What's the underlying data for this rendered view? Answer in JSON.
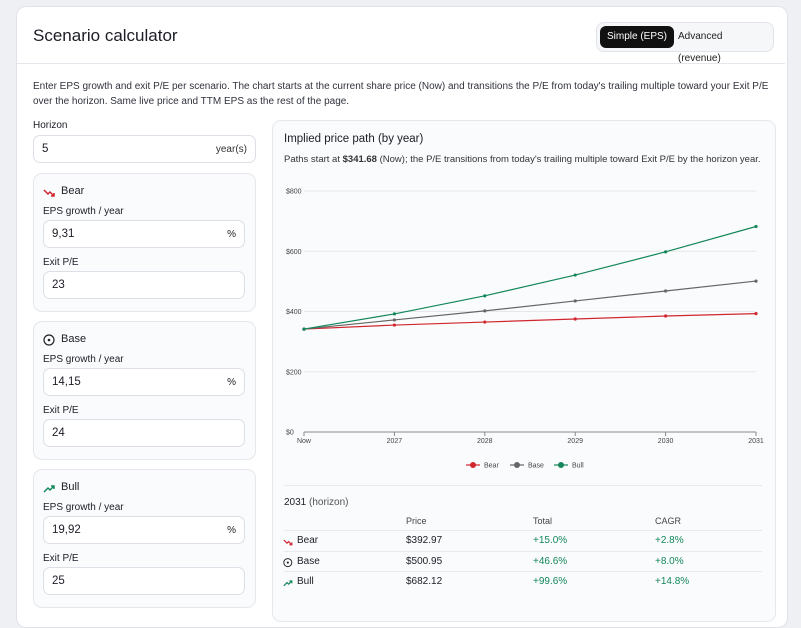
{
  "header": {
    "title": "Scenario calculator",
    "tabs": [
      "Simple (EPS)",
      "Advanced (revenue)"
    ]
  },
  "intro": "Enter EPS growth and exit P/E per scenario. The chart starts at the current share price (Now) and transitions the P/E from today's trailing multiple toward your Exit P/E over the horizon. Same live price and TTM EPS as the rest of the page.",
  "horizon": {
    "label": "Horizon",
    "value": "5",
    "unit": "year(s)"
  },
  "scenarios": [
    {
      "name": "Bear",
      "growth_label": "EPS growth / year",
      "growth": "9,31",
      "growth_unit": "%",
      "pe_label": "Exit P/E",
      "pe": "23"
    },
    {
      "name": "Base",
      "growth_label": "EPS growth / year",
      "growth": "14,15",
      "growth_unit": "%",
      "pe_label": "Exit P/E",
      "pe": "24"
    },
    {
      "name": "Bull",
      "growth_label": "EPS growth / year",
      "growth": "19,92",
      "growth_unit": "%",
      "pe_label": "Exit P/E",
      "pe": "25"
    }
  ],
  "panel": {
    "title": "Implied price path (by year)",
    "subtitle_start": "Paths start at",
    "subtitle_price": "$341.68",
    "subtitle_end": "(Now); the P/E transitions from today's trailing multiple toward Exit P/E by the horizon year."
  },
  "chart_data": {
    "type": "line",
    "categories": [
      "Now",
      "2027",
      "2028",
      "2029",
      "2030",
      "2031"
    ],
    "series": [
      {
        "name": "Bear",
        "color": "#d0262d",
        "values": [
          341.68,
          355,
          365,
          375,
          385,
          392.97
        ]
      },
      {
        "name": "Base",
        "color": "#666666",
        "values": [
          341.68,
          372,
          402,
          435,
          468,
          500.95
        ]
      },
      {
        "name": "Bull",
        "color": "#13875a",
        "values": [
          341.68,
          392,
          452,
          521,
          598,
          682.12
        ]
      }
    ],
    "ylim": [
      0,
      800
    ],
    "yticks": [
      {
        "value": 0,
        "label": "$0"
      },
      {
        "value": 200,
        "label": "$200"
      },
      {
        "value": 400,
        "label": "$400"
      },
      {
        "value": 600,
        "label": "$600"
      },
      {
        "value": 800,
        "label": "$800"
      }
    ],
    "grid": true,
    "legend": "bottom"
  },
  "table": {
    "year": "2031",
    "year_note": "(horizon)",
    "columns": [
      "Price",
      "Total",
      "CAGR"
    ],
    "rows": [
      [
        "Bear",
        "$392.97",
        "+15.0%",
        "+2.8%"
      ],
      [
        "Base",
        "$500.95",
        "+46.6%",
        "+8.0%"
      ],
      [
        "Bull",
        "$682.12",
        "+99.6%",
        "+14.8%"
      ]
    ]
  }
}
